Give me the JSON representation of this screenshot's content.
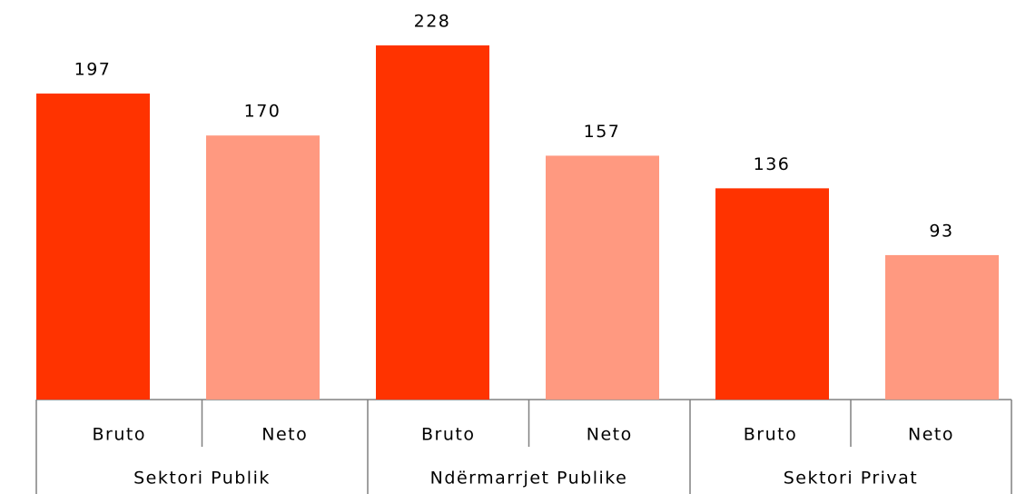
{
  "chart_data": {
    "type": "bar",
    "groups": [
      {
        "name": "Sektori Publik",
        "categories": [
          "Bruto",
          "Neto"
        ],
        "values": [
          197,
          170
        ]
      },
      {
        "name": "Ndërmarrjet Publike",
        "categories": [
          "Bruto",
          "Neto"
        ],
        "values": [
          228,
          157
        ]
      },
      {
        "name": "Sektori Privat",
        "categories": [
          "Bruto",
          "Neto"
        ],
        "values": [
          136,
          93
        ]
      }
    ],
    "colors": [
      "#ff3300",
      "#ff9980"
    ]
  }
}
